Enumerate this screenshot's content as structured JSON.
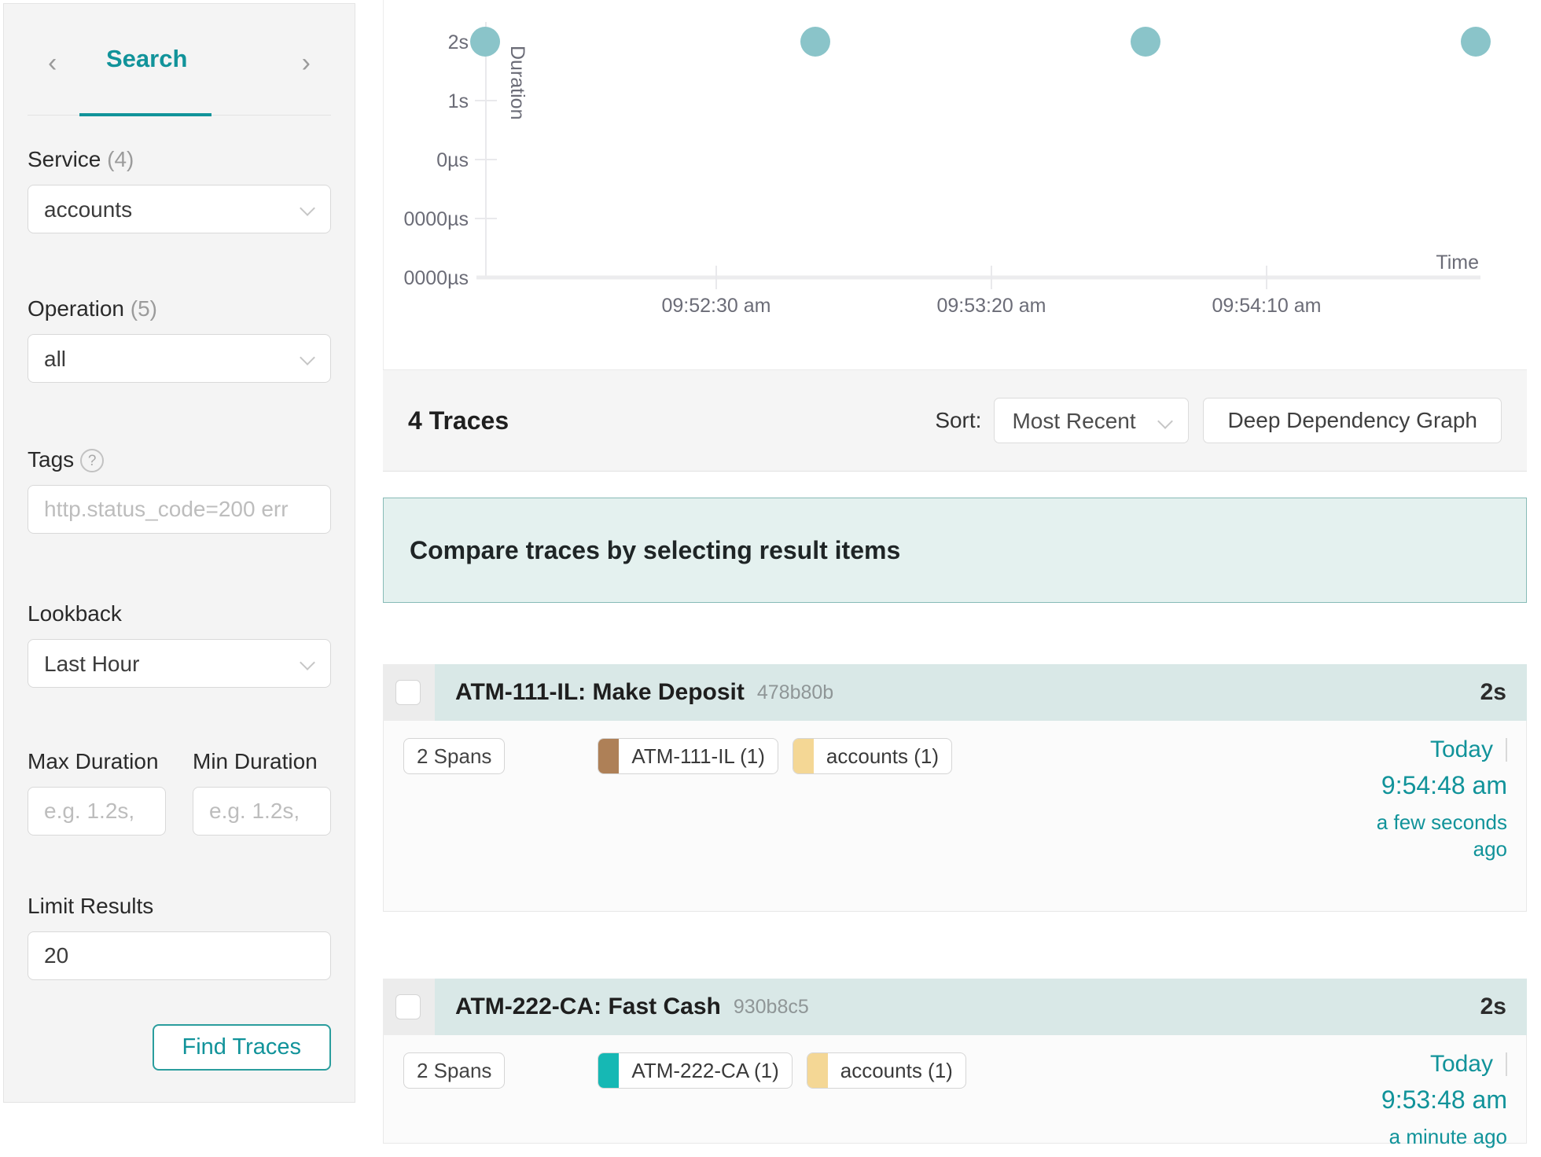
{
  "sidebar": {
    "nav": {
      "prev_icon": "chevron-left",
      "tab_label": "Search",
      "next_icon": "chevron-right",
      "prev_glyph": "‹",
      "next_glyph": "›"
    },
    "service": {
      "label": "Service",
      "count": "(4)",
      "value": "accounts"
    },
    "operation": {
      "label": "Operation",
      "count": "(5)",
      "value": "all"
    },
    "tags": {
      "label": "Tags",
      "help_glyph": "?",
      "placeholder": "http.status_code=200 err"
    },
    "lookback": {
      "label": "Lookback",
      "value": "Last Hour"
    },
    "max_duration": {
      "label": "Max Duration",
      "placeholder": "e.g. 1.2s,"
    },
    "min_duration": {
      "label": "Min Duration",
      "placeholder": "e.g. 1.2s,"
    },
    "limit": {
      "label": "Limit Results",
      "value": "20"
    },
    "find_button_label": "Find Traces",
    "accent_color": "#11939a"
  },
  "chart_data": {
    "type": "scatter",
    "title": "",
    "xlabel": "Time",
    "ylabel": "Duration",
    "y_ticks": [
      "2s",
      "1s",
      "0µs",
      "0000µs",
      "0000µs"
    ],
    "x_ticks": [
      "09:52:30 am",
      "09:53:20 am",
      "09:54:10 am"
    ],
    "points": [
      {
        "time": "9:51:48 am",
        "duration_s": 2
      },
      {
        "time": "9:52:48 am",
        "duration_s": 2
      },
      {
        "time": "9:53:48 am",
        "duration_s": 2
      },
      {
        "time": "9:54:48 am",
        "duration_s": 2
      }
    ],
    "point_color": "#8ac4c9",
    "axis_color": "#e9e9ec",
    "label_color": "#6b6c77",
    "grid": false,
    "legend": false
  },
  "results_header": {
    "count_label": "4 Traces",
    "sort_label": "Sort:",
    "sort_value": "Most Recent",
    "ddg_button_label": "Deep Dependency Graph"
  },
  "banner": {
    "text": "Compare traces by selecting result items"
  },
  "traces": [
    {
      "title": "ATM-111-IL: Make Deposit",
      "id": "478b80b",
      "duration": "2s",
      "spans_label": "2 Spans",
      "tags": [
        {
          "label": "ATM-111-IL (1)",
          "color": "#ae8057"
        },
        {
          "label": "accounts (1)",
          "color": "#f4d795"
        }
      ],
      "date": "Today",
      "time": "9:54:48 am",
      "ago": "a few seconds ago"
    },
    {
      "title": "ATM-222-CA: Fast Cash",
      "id": "930b8c5",
      "duration": "2s",
      "spans_label": "2 Spans",
      "tags": [
        {
          "label": "ATM-222-CA (1)",
          "color": "#16b8b4"
        },
        {
          "label": "accounts (1)",
          "color": "#f4d795"
        }
      ],
      "date": "Today",
      "time": "9:53:48 am",
      "ago": "a minute ago"
    }
  ]
}
